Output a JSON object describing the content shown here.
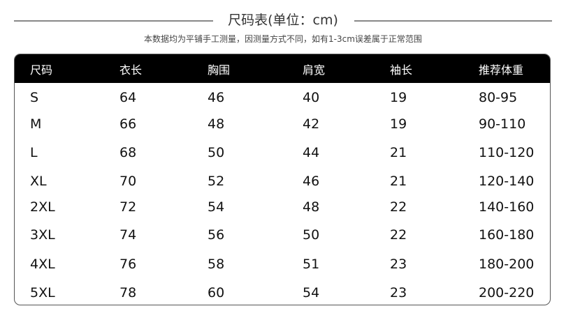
{
  "title": "尺码表(单位：cm)",
  "subtitle": "本数据均为平铺手工测量，因测量方式不同，如有1-3cm误差属于正常范围",
  "table": {
    "headers": [
      "尺码",
      "衣长",
      "胸围",
      "肩宽",
      "袖长",
      "推荐体重"
    ],
    "rows": [
      [
        "S",
        "64",
        "46",
        "40",
        "19",
        "80-95"
      ],
      [
        "M",
        "66",
        "48",
        "42",
        "19",
        "90-110"
      ],
      [
        "L",
        "68",
        "50",
        "44",
        "21",
        "110-120"
      ],
      [
        "XL",
        "70",
        "52",
        "46",
        "21",
        "120-140"
      ],
      [
        "2XL",
        "72",
        "54",
        "48",
        "22",
        "140-160"
      ],
      [
        "3XL",
        "74",
        "56",
        "50",
        "22",
        "160-180"
      ],
      [
        "4XL",
        "76",
        "58",
        "51",
        "23",
        "180-200"
      ],
      [
        "5XL",
        "78",
        "60",
        "54",
        "23",
        "200-220"
      ]
    ]
  },
  "colors": {
    "header_bg": "#000000",
    "header_text": "#ffffff",
    "rule": "#888888"
  }
}
